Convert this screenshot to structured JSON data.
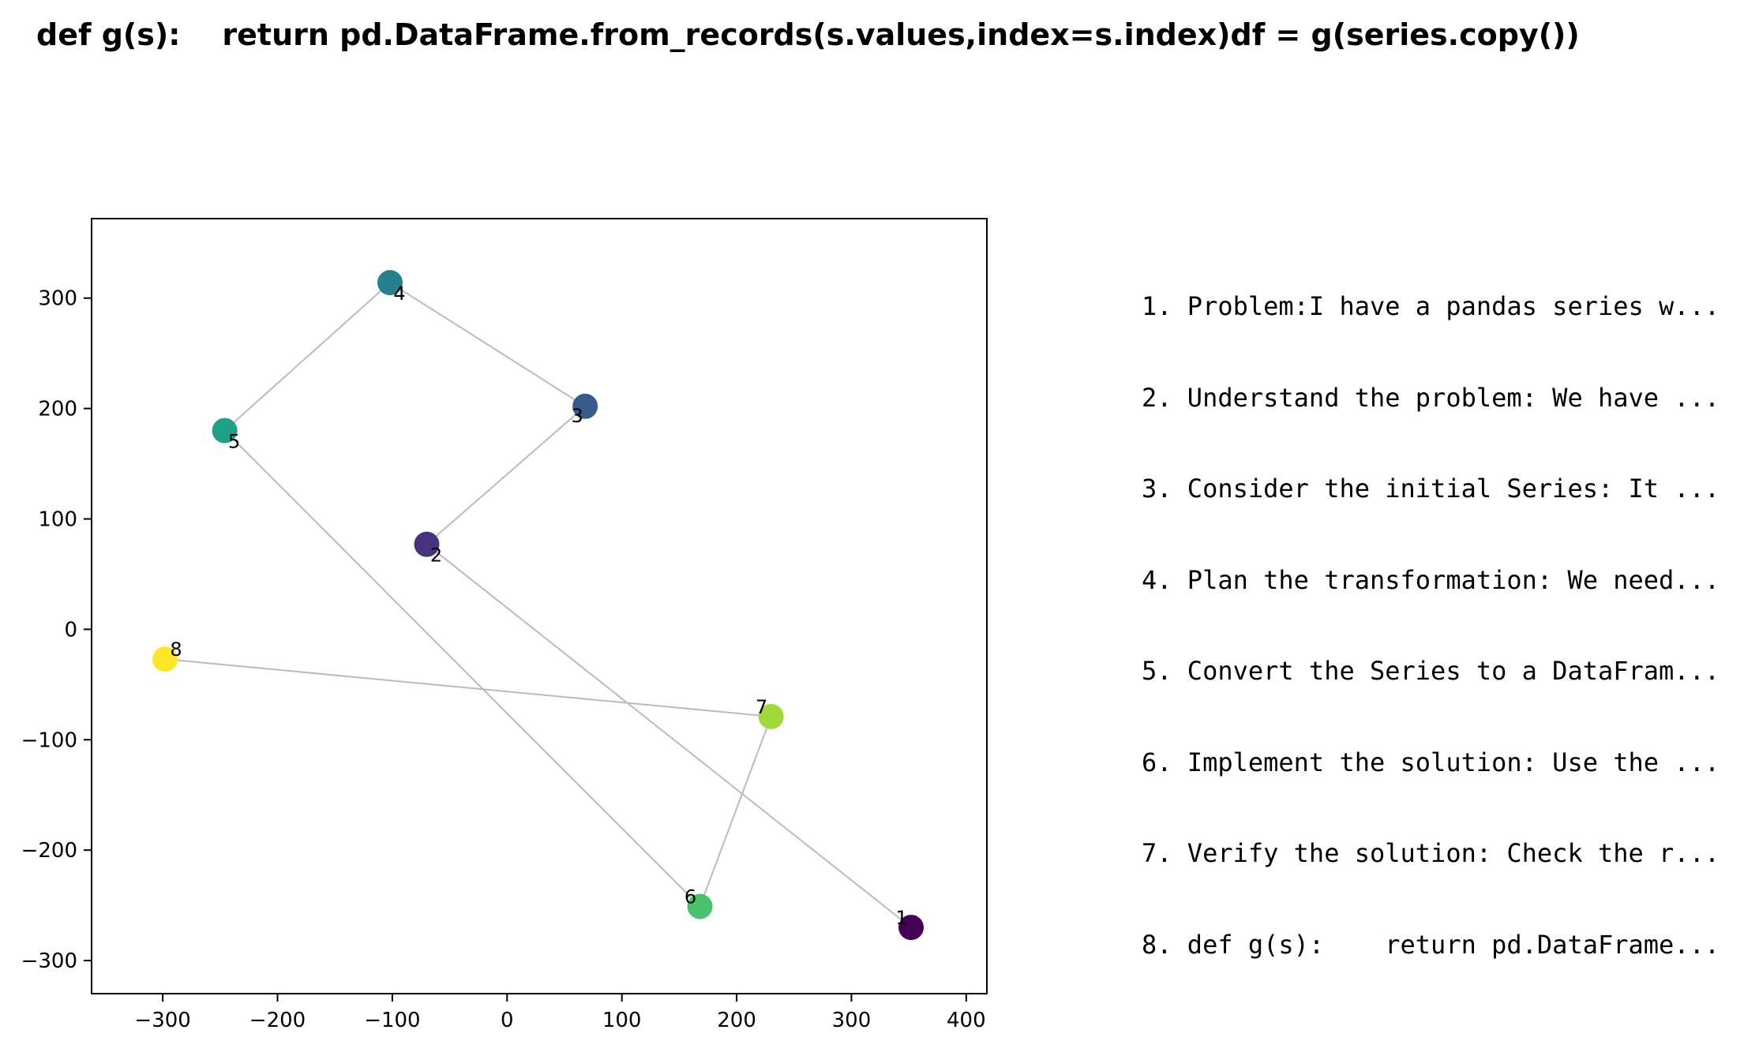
{
  "title": "def g(s):    return pd.DataFrame.from_records(s.values,index=s.index)df = g(series.copy())",
  "steps": [
    "1. Problem:I have a pandas series w...",
    "2. Understand the problem: We have ...",
    "3. Consider the initial Series: It ...",
    "4. Plan the transformation: We need...",
    "5. Convert the Series to a DataFram...",
    "6. Implement the solution: Use the ...",
    "7. Verify the solution: Check the r...",
    "8. def g(s):    return pd.DataFrame..."
  ],
  "chart_data": {
    "type": "scatter",
    "title": "",
    "xlabel": "",
    "ylabel": "",
    "xlim": [
      -362,
      418
    ],
    "ylim": [
      -330,
      372
    ],
    "xticks": [
      -300,
      -200,
      -100,
      0,
      100,
      200,
      300,
      400
    ],
    "yticks": [
      -300,
      -200,
      -100,
      0,
      100,
      200,
      300
    ],
    "xtick_labels": [
      "−300",
      "−200",
      "−100",
      "0",
      "100",
      "200",
      "300",
      "400"
    ],
    "ytick_labels": [
      "−300",
      "−200",
      "−100",
      "0",
      "100",
      "200",
      "300"
    ],
    "grid": false,
    "colormap": "viridis",
    "connect_in_order": true,
    "line_color": "#bbbbbb",
    "points": [
      {
        "label": "1",
        "x": 352,
        "y": -270,
        "color": "#440154",
        "label_pos": "above-left"
      },
      {
        "label": "2",
        "x": -70,
        "y": 77,
        "color": "#46327e",
        "label_pos": "below-right"
      },
      {
        "label": "3",
        "x": 68,
        "y": 202,
        "color": "#365c8d",
        "label_pos": "below-left"
      },
      {
        "label": "4",
        "x": -102,
        "y": 314,
        "color": "#277f8e",
        "label_pos": "below-right"
      },
      {
        "label": "5",
        "x": -246,
        "y": 180,
        "color": "#1fa187",
        "label_pos": "below-right"
      },
      {
        "label": "6",
        "x": 168,
        "y": -251,
        "color": "#4ac16d",
        "label_pos": "above-left"
      },
      {
        "label": "7",
        "x": 230,
        "y": -79,
        "color": "#a0da39",
        "label_pos": "above-left"
      },
      {
        "label": "8",
        "x": -298,
        "y": -27,
        "color": "#fde725",
        "label_pos": "above-right"
      }
    ]
  }
}
